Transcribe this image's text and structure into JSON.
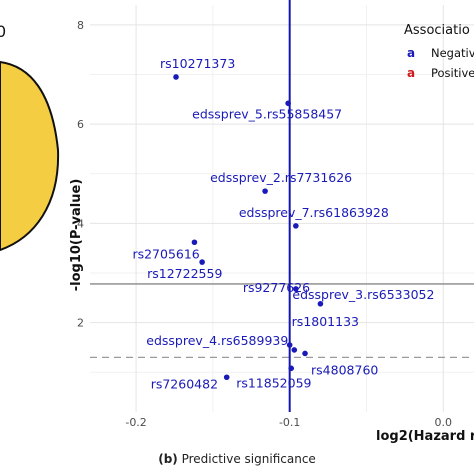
{
  "panel_a": {
    "label_fragment": "0",
    "circle_color": "#f5cd43"
  },
  "chart_data": {
    "type": "scatter",
    "title": "",
    "xlabel": "log2(Hazard r",
    "ylabel": "-log10(P-value)",
    "xlim": [
      -0.23,
      0.02
    ],
    "ylim": [
      0.2,
      8.4
    ],
    "x_ticks": [
      {
        "v": -0.2,
        "label": "-0.2"
      },
      {
        "v": -0.1,
        "label": "-0.1"
      },
      {
        "v": 0.0,
        "label": "0.0"
      }
    ],
    "y_ticks": [
      {
        "v": 2,
        "label": "2"
      },
      {
        "v": 4,
        "label": "4"
      },
      {
        "v": 6,
        "label": "6"
      },
      {
        "v": 8,
        "label": "8"
      }
    ],
    "grid": true,
    "vline": {
      "x": -0.1,
      "color": "#1515b0"
    },
    "hline_solid": {
      "y": 2.78,
      "color": "#9a9a9a"
    },
    "hline_dashed": {
      "y": 1.3,
      "color": "#9a9a9a"
    },
    "point_color": "#1a1ab8",
    "points": [
      {
        "label": "rs10271373",
        "x": -0.174,
        "y": 6.95
      },
      {
        "label": "edssprev_5.rs55858457",
        "x": -0.101,
        "y": 6.42
      },
      {
        "label": "edssprev_2.rs7731626",
        "x": -0.116,
        "y": 4.65
      },
      {
        "label": "edssprev_7.rs61863928",
        "x": -0.096,
        "y": 3.95
      },
      {
        "label": "rs2705616",
        "x": -0.162,
        "y": 3.62
      },
      {
        "label": "rs12722559",
        "x": -0.157,
        "y": 3.22
      },
      {
        "label": "rs9277626",
        "x": -0.096,
        "y": 2.68
      },
      {
        "label": "edssprev_3.rs6533052",
        "x": -0.08,
        "y": 2.38
      },
      {
        "label": "rs1801133",
        "x": -0.1,
        "y": 1.55
      },
      {
        "label": "edssprev_4.rs6589939",
        "x": -0.097,
        "y": 1.45
      },
      {
        "label": "rs4808760",
        "x": -0.09,
        "y": 1.38
      },
      {
        "label": "rs7260482",
        "x": -0.141,
        "y": 0.9
      },
      {
        "label": "rs11852059",
        "x": -0.099,
        "y": 1.08
      }
    ],
    "legend": {
      "title": "Associatio",
      "position": "top-right",
      "items": [
        {
          "glyph": "a",
          "label": "Negativ",
          "color": "#1a1ab8"
        },
        {
          "glyph": "a",
          "label": "Positive",
          "color": "#d01a1a"
        }
      ]
    }
  },
  "caption": {
    "prefix": "(b)",
    "text": "Predictive significance"
  }
}
